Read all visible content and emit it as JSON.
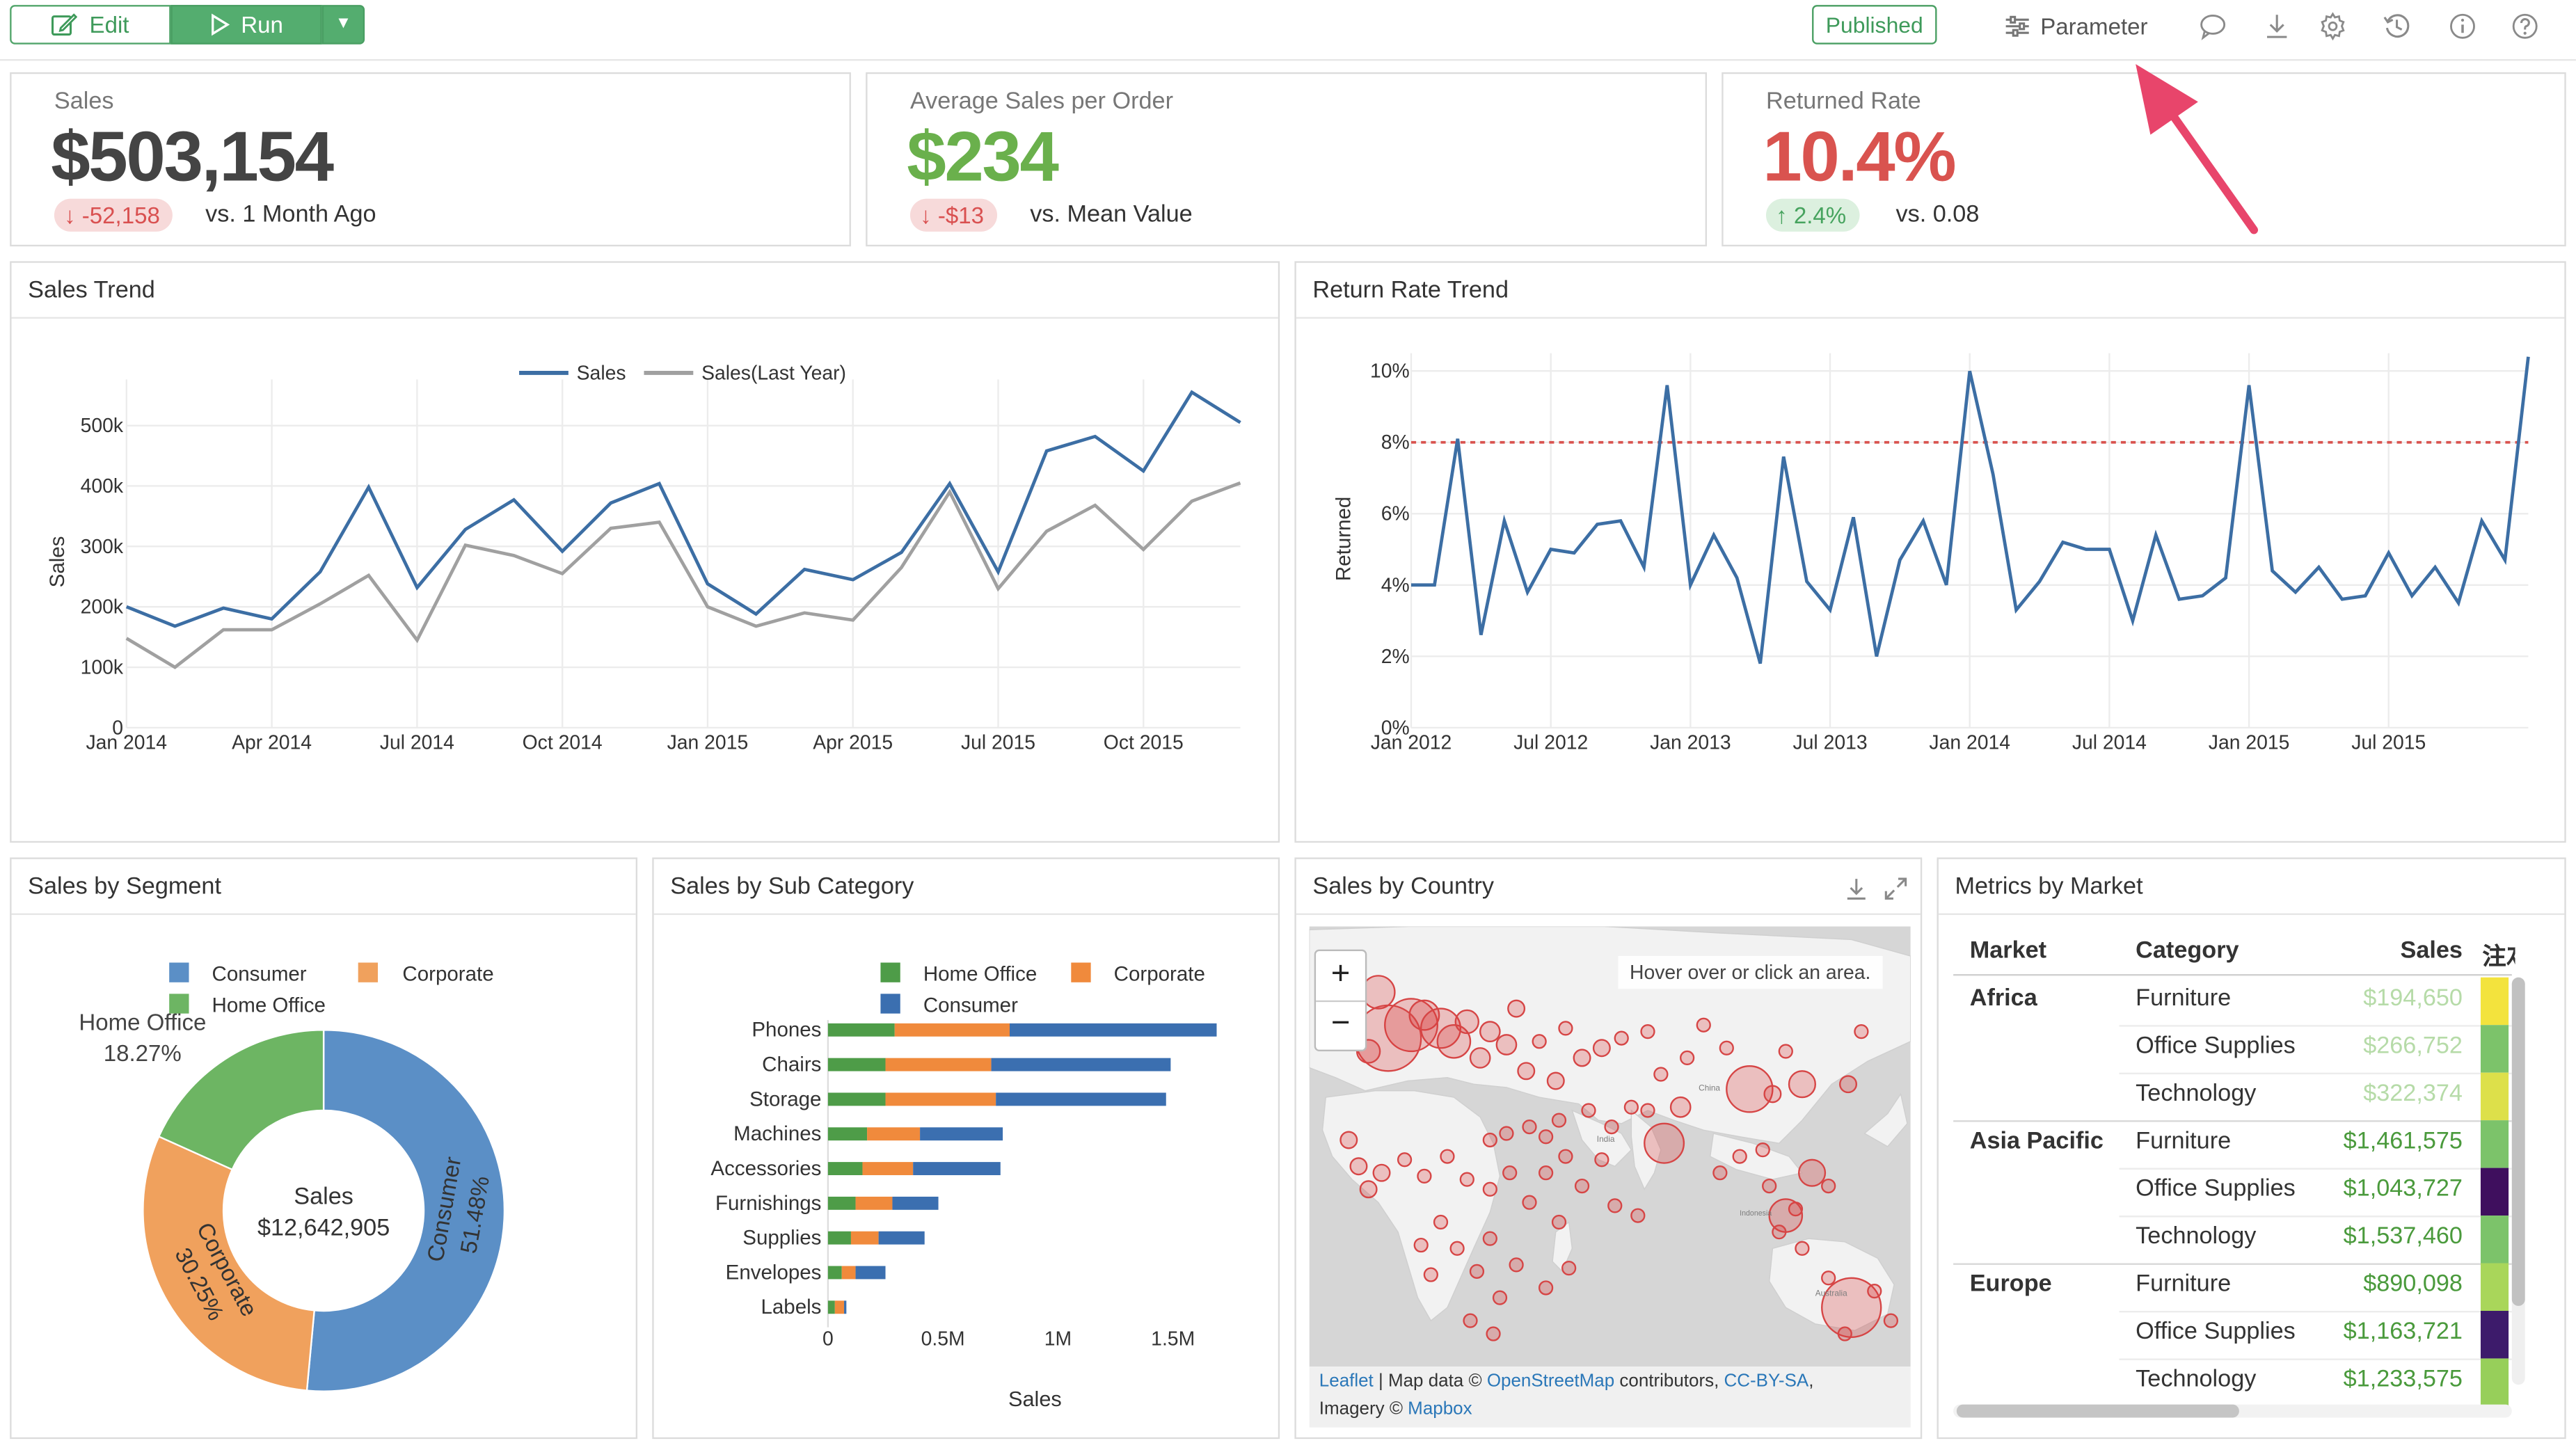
{
  "toolbar": {
    "edit_label": "Edit",
    "run_label": "Run",
    "published_label": "Published",
    "parameter_label": "Parameter",
    "accent": "#54ad6f"
  },
  "kpis": [
    {
      "label": "Sales",
      "value": "$503,154",
      "delta": "-52,158",
      "direction": "down",
      "comparison": "vs. 1 Month Ago",
      "value_color": "#444444"
    },
    {
      "label": "Average Sales per Order",
      "value": "$234",
      "delta": "-$13",
      "direction": "down",
      "comparison": "vs. Mean Value",
      "value_color": "#6ab04c"
    },
    {
      "label": "Returned Rate",
      "value": "10.4%",
      "delta": "2.4%",
      "direction": "up",
      "comparison": "vs. 0.08",
      "value_color": "#d9534f"
    }
  ],
  "cards": {
    "sales_trend": "Sales Trend",
    "return_rate_trend": "Return Rate Trend",
    "sales_by_segment": "Sales by Segment",
    "sales_by_sub_category": "Sales by Sub Category",
    "sales_by_country": "Sales by Country",
    "metrics_by_market": "Metrics by Market"
  },
  "map": {
    "hover_hint": "Hover over or click an area.",
    "zoom_in": "+",
    "zoom_out": "−",
    "attribution_1": "Leaflet",
    "attribution_2": " | Map data © ",
    "attribution_3": "OpenStreetMap",
    "attribution_4": " contributors, ",
    "attribution_5": "CC-BY-SA",
    "attribution_6": ",",
    "attribution_7": "Imagery © ",
    "attribution_8": "Mapbox",
    "labels": {
      "china": "China",
      "india": "India",
      "indonesia": "Indonesia",
      "australia": "Australia"
    }
  },
  "table": {
    "headers": [
      "Market",
      "Category",
      "Sales",
      "注ｽ"
    ],
    "rows": [
      {
        "market": "Africa",
        "category": "Furniture",
        "sales": "$194,650",
        "bar": "#f3e33d",
        "faded": true
      },
      {
        "market": "",
        "category": "Office Supplies",
        "sales": "$266,752",
        "bar": "#7cc36a",
        "faded": true
      },
      {
        "market": "",
        "category": "Technology",
        "sales": "$322,374",
        "bar": "#dde04a",
        "faded": true
      },
      {
        "market": "Asia Pacific",
        "category": "Furniture",
        "sales": "$1,461,575",
        "bar": "#7cc36a",
        "faded": false
      },
      {
        "market": "",
        "category": "Office Supplies",
        "sales": "$1,043,727",
        "bar": "#3f0f5e",
        "faded": false
      },
      {
        "market": "",
        "category": "Technology",
        "sales": "$1,537,460",
        "bar": "#7cc36a",
        "faded": false
      },
      {
        "market": "Europe",
        "category": "Furniture",
        "sales": "$890,098",
        "bar": "#a9d65a",
        "faded": false
      },
      {
        "market": "",
        "category": "Office Supplies",
        "sales": "$1,163,721",
        "bar": "#3d1b6b",
        "faded": false
      },
      {
        "market": "",
        "category": "Technology",
        "sales": "$1,233,575",
        "bar": "#97cf5a",
        "faded": false
      }
    ]
  },
  "chart_data": [
    {
      "id": "sales_trend",
      "type": "line",
      "title": "Sales Trend",
      "ylabel": "Sales",
      "ylim": [
        0,
        560000
      ],
      "yticks": [
        0,
        100000,
        200000,
        300000,
        400000,
        500000
      ],
      "ytick_labels": [
        "0",
        "100k",
        "200k",
        "300k",
        "400k",
        "500k"
      ],
      "x_tick_labels": [
        "Jan 2014",
        "Apr 2014",
        "Jul 2014",
        "Oct 2014",
        "Jan 2015",
        "Apr 2015",
        "Jul 2015",
        "Oct 2015"
      ],
      "x": [
        "2014-01",
        "2014-02",
        "2014-03",
        "2014-04",
        "2014-05",
        "2014-06",
        "2014-07",
        "2014-08",
        "2014-09",
        "2014-10",
        "2014-11",
        "2014-12",
        "2015-01",
        "2015-02",
        "2015-03",
        "2015-04",
        "2015-05",
        "2015-06",
        "2015-07",
        "2015-08",
        "2015-09",
        "2015-10",
        "2015-11",
        "2015-12"
      ],
      "legend_position": "top-center",
      "series": [
        {
          "name": "Sales",
          "color": "#3c6ea4",
          "values": [
            200000,
            168000,
            198000,
            180000,
            258000,
            398000,
            232000,
            328000,
            377000,
            292000,
            372000,
            404000,
            238000,
            188000,
            262000,
            245000,
            290000,
            404000,
            258000,
            458000,
            482000,
            425000,
            555000,
            505000
          ]
        },
        {
          "name": "Sales(Last Year)",
          "color": "#a0a0a0",
          "values": [
            148000,
            100000,
            162000,
            162000,
            205000,
            252000,
            145000,
            302000,
            285000,
            255000,
            330000,
            340000,
            200000,
            168000,
            190000,
            178000,
            265000,
            390000,
            230000,
            325000,
            368000,
            295000,
            375000,
            405000
          ]
        }
      ]
    },
    {
      "id": "return_rate_trend",
      "type": "line",
      "title": "Return Rate Trend",
      "ylabel": "Returned",
      "ylim": [
        0,
        0.105
      ],
      "yticks": [
        0,
        0.02,
        0.04,
        0.06,
        0.08,
        0.1
      ],
      "ytick_labels": [
        "0%",
        "2%",
        "4%",
        "6%",
        "8%",
        "10%"
      ],
      "x_tick_labels": [
        "Jan 2012",
        "Jul 2012",
        "Jan 2013",
        "Jul 2013",
        "Jan 2014",
        "Jul 2014",
        "Jan 2015",
        "Jul 2015"
      ],
      "reference_line": {
        "value": 0.08,
        "color": "#d9534f",
        "style": "dotted"
      },
      "series": [
        {
          "name": "Returned",
          "color": "#3c6ea4",
          "values": [
            0.04,
            0.04,
            0.081,
            0.026,
            0.058,
            0.038,
            0.05,
            0.049,
            0.057,
            0.058,
            0.045,
            0.096,
            0.04,
            0.054,
            0.042,
            0.018,
            0.076,
            0.041,
            0.033,
            0.059,
            0.02,
            0.047,
            0.058,
            0.04,
            0.1,
            0.071,
            0.033,
            0.041,
            0.052,
            0.05,
            0.05,
            0.03,
            0.054,
            0.036,
            0.037,
            0.042,
            0.096,
            0.044,
            0.038,
            0.045,
            0.036,
            0.037,
            0.049,
            0.037,
            0.045,
            0.035,
            0.058,
            0.047,
            0.104
          ]
        }
      ]
    },
    {
      "id": "sales_by_segment",
      "type": "pie",
      "title": "Sales by Segment",
      "center_label": "Sales",
      "center_value": "$12,642,905",
      "legend_position": "top",
      "slices": [
        {
          "name": "Consumer",
          "value": 51.48,
          "label": "51.48%",
          "color": "#5b8fc6"
        },
        {
          "name": "Corporate",
          "value": 30.25,
          "label": "30.25%",
          "color": "#f0a15d"
        },
        {
          "name": "Home Office",
          "value": 18.27,
          "label": "18.27%",
          "color": "#6db563"
        }
      ]
    },
    {
      "id": "sales_by_sub_category",
      "type": "bar",
      "orientation": "horizontal",
      "stacked": true,
      "title": "Sales by Sub Category",
      "xlabel": "Sales",
      "xlim": [
        0,
        1750000
      ],
      "xticks": [
        0,
        500000,
        1000000,
        1500000
      ],
      "xtick_labels": [
        "0",
        "0.5M",
        "1M",
        "1.5M"
      ],
      "categories": [
        "Phones",
        "Chairs",
        "Storage",
        "Machines",
        "Accessories",
        "Furnishings",
        "Supplies",
        "Envelopes",
        "Labels"
      ],
      "series": [
        {
          "name": "Home Office",
          "color": "#4e9c48",
          "values": [
            290000,
            250000,
            250000,
            170000,
            150000,
            120000,
            100000,
            60000,
            30000
          ]
        },
        {
          "name": "Corporate",
          "color": "#f08a3c",
          "values": [
            500000,
            460000,
            480000,
            230000,
            220000,
            160000,
            120000,
            60000,
            40000
          ]
        },
        {
          "name": "Consumer",
          "color": "#3b6fb0",
          "values": [
            900000,
            780000,
            740000,
            360000,
            380000,
            200000,
            200000,
            130000,
            10000
          ]
        }
      ]
    }
  ]
}
